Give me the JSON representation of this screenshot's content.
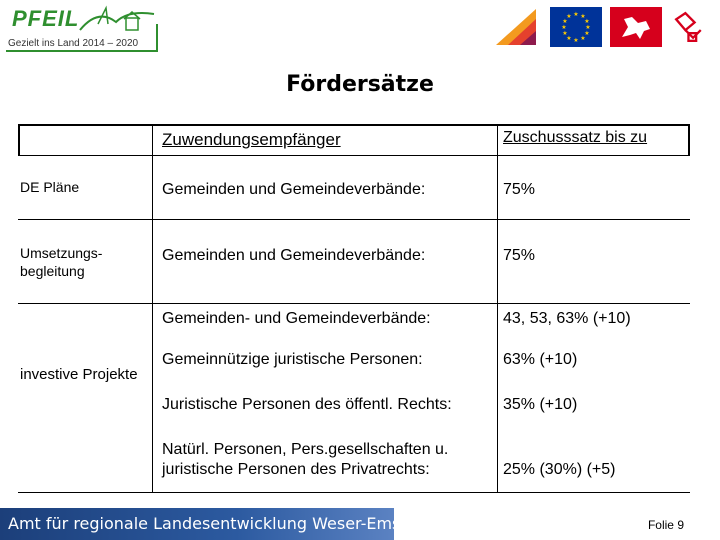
{
  "header": {
    "logo_title": "PFEIL",
    "logo_subtitle": "Gezielt ins Land 2014 – 2020"
  },
  "title": "Fördersätze",
  "table": {
    "col2_header": "Zuwendungsempfänger",
    "col3_header": "Zuschusssatz bis zu",
    "rows": [
      {
        "label": "DE Pläne",
        "recipient": "Gemeinden und Gemeindeverbände:",
        "rate": "75%"
      },
      {
        "label": "Umsetzungs-\nbegleitung",
        "recipient": "Gemeinden und Gemeindeverbände:",
        "rate": "75%"
      }
    ],
    "investive_label": "investive Projekte",
    "investive_items": [
      {
        "recipient": "Gemeinden- und Gemeindeverbände:",
        "rate": "43, 53, 63%  (+10)"
      },
      {
        "recipient": "Gemeinnützige juristische Personen:",
        "rate": "63% (+10)"
      },
      {
        "recipient": "Juristische Personen des öffentl. Rechts:",
        "rate": "35% (+10)"
      },
      {
        "recipient_line1": "Natürl. Personen, Pers.gesellschaften u.",
        "recipient_line2": "juristische Personen des Privatrechts:",
        "rate": "25% (30%)   (+5)"
      }
    ]
  },
  "footer": {
    "org": "Amt für regionale Landesentwicklung Weser-Ems",
    "slide": "Folie 9"
  },
  "colors": {
    "brand_green": "#2f8f2f",
    "footer_blue": "#1c3f7a",
    "eu_blue": "#003399",
    "eu_yellow": "#ffcc00",
    "niedersachsen_red": "#d6001c"
  },
  "icons": [
    "pfeil-logo",
    "lower-saxony-logo",
    "eu-flag-icon",
    "niedersachsen-horse-icon",
    "arl-logo"
  ]
}
